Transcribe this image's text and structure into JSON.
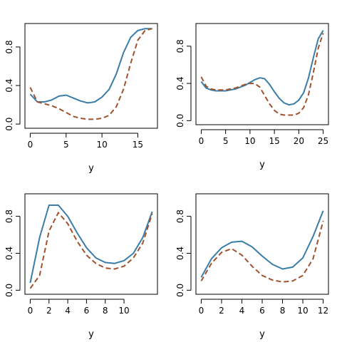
{
  "colors": {
    "solid_series": "#3a7da8",
    "dashed_series": "#a0522d"
  },
  "chart_data": [
    {
      "type": "line",
      "xlabel": "y",
      "ylabel": "",
      "xlim": [
        0,
        17
      ],
      "ylim": [
        0,
        1
      ],
      "xticks": [
        0,
        5,
        10,
        15
      ],
      "yticks": [
        0.0,
        0.4,
        0.8
      ],
      "ytick_labels": [
        "0.0",
        "0.4",
        "0.8"
      ],
      "grid": false,
      "series": [
        {
          "style": "solid",
          "x": [
            0,
            1,
            2,
            3,
            4,
            5,
            6,
            7,
            8,
            9,
            10,
            11,
            12,
            13,
            14,
            15,
            16,
            17
          ],
          "y": [
            0.31,
            0.23,
            0.23,
            0.25,
            0.29,
            0.3,
            0.27,
            0.24,
            0.22,
            0.23,
            0.28,
            0.36,
            0.52,
            0.74,
            0.9,
            0.97,
            0.99,
            0.99
          ]
        },
        {
          "style": "dashed",
          "x": [
            0,
            1,
            2,
            3,
            4,
            5,
            6,
            7,
            8,
            9,
            10,
            11,
            12,
            13,
            14,
            15,
            16,
            17
          ],
          "y": [
            0.38,
            0.23,
            0.21,
            0.19,
            0.16,
            0.12,
            0.08,
            0.06,
            0.05,
            0.05,
            0.06,
            0.09,
            0.18,
            0.36,
            0.63,
            0.87,
            0.97,
            0.99
          ]
        }
      ]
    },
    {
      "type": "line",
      "xlabel": "y",
      "ylabel": "",
      "xlim": [
        0,
        25
      ],
      "ylim": [
        0,
        1
      ],
      "xticks": [
        0,
        5,
        10,
        15,
        20,
        25
      ],
      "yticks": [
        0.0,
        0.4,
        0.8
      ],
      "ytick_labels": [
        "0.0",
        "0.4",
        "0.8"
      ],
      "grid": false,
      "series": [
        {
          "style": "solid",
          "x": [
            0,
            1,
            2,
            3,
            4,
            5,
            6,
            7,
            8,
            9,
            10,
            11,
            12,
            13,
            14,
            15,
            16,
            17,
            18,
            19,
            20,
            21,
            22,
            23,
            24,
            25
          ],
          "y": [
            0.42,
            0.35,
            0.33,
            0.32,
            0.32,
            0.32,
            0.33,
            0.34,
            0.36,
            0.38,
            0.41,
            0.44,
            0.46,
            0.45,
            0.39,
            0.31,
            0.24,
            0.19,
            0.17,
            0.18,
            0.22,
            0.3,
            0.46,
            0.68,
            0.88,
            0.97
          ]
        },
        {
          "style": "dashed",
          "x": [
            0,
            1,
            2,
            3,
            4,
            5,
            6,
            7,
            8,
            9,
            10,
            11,
            12,
            13,
            14,
            15,
            16,
            17,
            18,
            19,
            20,
            21,
            22,
            23,
            24,
            25
          ],
          "y": [
            0.47,
            0.37,
            0.34,
            0.33,
            0.33,
            0.33,
            0.34,
            0.35,
            0.37,
            0.39,
            0.4,
            0.4,
            0.36,
            0.27,
            0.18,
            0.11,
            0.07,
            0.06,
            0.06,
            0.06,
            0.08,
            0.14,
            0.28,
            0.52,
            0.78,
            0.94
          ]
        }
      ]
    },
    {
      "type": "line",
      "xlabel": "y",
      "ylabel": "",
      "xlim": [
        0,
        13
      ],
      "ylim": [
        0,
        1
      ],
      "xticks": [
        0,
        2,
        4,
        6,
        8,
        10
      ],
      "yticks": [
        0.0,
        0.4,
        0.8
      ],
      "ytick_labels": [
        "0.0",
        "0.4",
        "0.8"
      ],
      "grid": false,
      "series": [
        {
          "style": "solid",
          "x": [
            0,
            1,
            2,
            3,
            4,
            5,
            6,
            7,
            8,
            9,
            10,
            11,
            12,
            13
          ],
          "y": [
            0.08,
            0.57,
            0.92,
            0.92,
            0.8,
            0.62,
            0.46,
            0.35,
            0.3,
            0.29,
            0.32,
            0.4,
            0.57,
            0.85
          ]
        },
        {
          "style": "dashed",
          "x": [
            0,
            1,
            2,
            3,
            4,
            5,
            6,
            7,
            8,
            9,
            10,
            11,
            12,
            13
          ],
          "y": [
            0.02,
            0.16,
            0.64,
            0.84,
            0.72,
            0.53,
            0.38,
            0.29,
            0.24,
            0.23,
            0.26,
            0.35,
            0.51,
            0.83
          ]
        }
      ]
    },
    {
      "type": "line",
      "xlabel": "y",
      "ylabel": "",
      "xlim": [
        0,
        12
      ],
      "ylim": [
        0,
        1
      ],
      "xticks": [
        0,
        2,
        4,
        6,
        8,
        10,
        12
      ],
      "yticks": [
        0.0,
        0.4,
        0.8
      ],
      "ytick_labels": [
        "0.0",
        "0.4",
        "0.8"
      ],
      "grid": false,
      "series": [
        {
          "style": "solid",
          "x": [
            0,
            1,
            2,
            3,
            4,
            5,
            6,
            7,
            8,
            9,
            10,
            11,
            12
          ],
          "y": [
            0.14,
            0.34,
            0.46,
            0.52,
            0.53,
            0.47,
            0.37,
            0.28,
            0.23,
            0.25,
            0.35,
            0.58,
            0.86
          ]
        },
        {
          "style": "dashed",
          "x": [
            0,
            1,
            2,
            3,
            4,
            5,
            6,
            7,
            8,
            9,
            10,
            11,
            12
          ],
          "y": [
            0.1,
            0.29,
            0.41,
            0.45,
            0.38,
            0.26,
            0.16,
            0.11,
            0.09,
            0.1,
            0.16,
            0.34,
            0.75
          ]
        }
      ]
    }
  ]
}
